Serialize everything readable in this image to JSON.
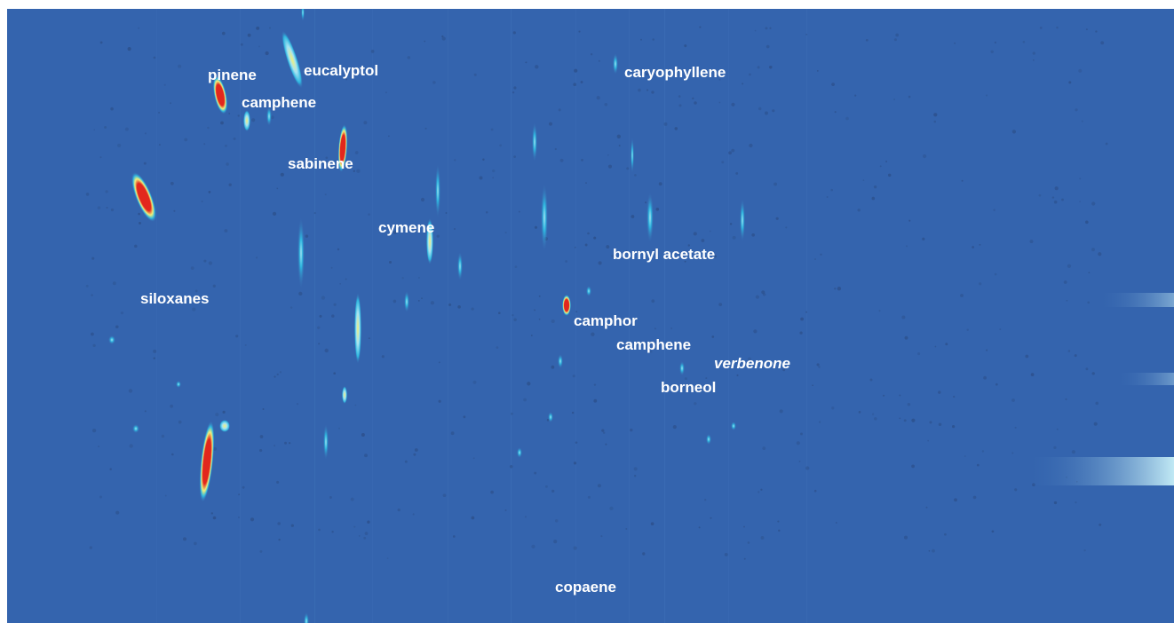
{
  "chart_data": {
    "type": "heatmap",
    "colors": {
      "background": "#3464ae",
      "low": "#3a6fb5",
      "mid": "#2fb7e0",
      "high_mid": "#a6e3f2",
      "high": "#f1f07a",
      "max": "#e2271d",
      "noise": "#2c4f8a",
      "label": "#ffffff"
    },
    "annotations": [
      {
        "text": "pinene",
        "italic": false
      },
      {
        "text": "eucalyptol",
        "italic": false
      },
      {
        "text": "camphene",
        "italic": false
      },
      {
        "text": "sabinene",
        "italic": false
      },
      {
        "text": "caryophyllene",
        "italic": false
      },
      {
        "text": "cymene",
        "italic": false
      },
      {
        "text": "bornyl acetate",
        "italic": false
      },
      {
        "text": "siloxanes",
        "italic": false
      },
      {
        "text": "camphor",
        "italic": false
      },
      {
        "text": "camphene",
        "italic": false
      },
      {
        "text": "verbenone",
        "italic": true
      },
      {
        "text": "borneol",
        "italic": false
      },
      {
        "text": "copaene",
        "italic": false
      }
    ]
  }
}
